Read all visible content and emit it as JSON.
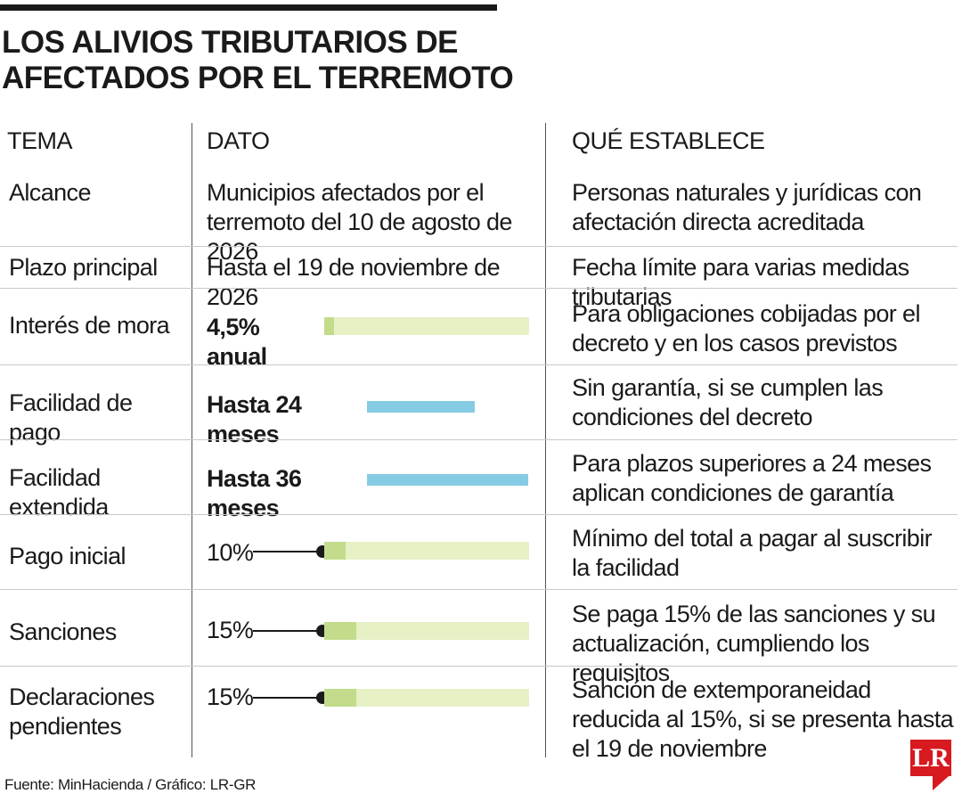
{
  "title": "LOS ALIVIOS TRIBUTARIOS DE AFECTADOS POR EL TERREMOTO",
  "headers": {
    "tema": "TEMA",
    "dato": "DATO",
    "establece": "QUÉ ESTABLECE"
  },
  "rows": [
    {
      "tema": "Alcance",
      "dato": "Municipios afectados por el terremoto del 10 de agosto de 2026",
      "establece": "Personas naturales y jurídicas con afectación directa acreditada"
    },
    {
      "tema": "Plazo principal",
      "dato": "Hasta el 19 de noviembre de 2026",
      "establece": "Fecha límite para varias medidas tributarias"
    },
    {
      "tema": "Interés de mora",
      "dato": "4,5% anual",
      "establece": "Para obligaciones cobijadas por el decreto y en los casos previstos",
      "fill": 0.045
    },
    {
      "tema": "Facilidad de pago",
      "dato": "Hasta 24 meses",
      "establece": "Sin garantía, si se cumplen las condiciones del decreto",
      "months": 24
    },
    {
      "tema": "Facilidad extendida",
      "dato": "Hasta 36 meses",
      "establece": "Para plazos superiores a 24 meses aplican condiciones de garantía",
      "months": 36
    },
    {
      "tema": "Pago inicial",
      "dato": "10%",
      "establece": "Mínimo del total a pagar al suscribir la facilidad",
      "fill": 0.1
    },
    {
      "tema": "Sanciones",
      "dato": "15%",
      "establece": "Se paga 15% de las sanciones y su actualización, cumpliendo los requisitos",
      "fill": 0.15
    },
    {
      "tema": "Declaraciones pendientes",
      "dato": "15%",
      "establece": "Sanción de extemporaneidad reducida al 15%, si se presenta hasta el 19 de noviembre",
      "fill": 0.15
    }
  ],
  "source": "Fuente: MinHacienda / Gráfico: LR-GR",
  "logo": "LR",
  "colors": {
    "track": "#e8f0c6",
    "fill": "#c2dc8c",
    "blue": "#86cbe4",
    "brand": "#d71920"
  }
}
